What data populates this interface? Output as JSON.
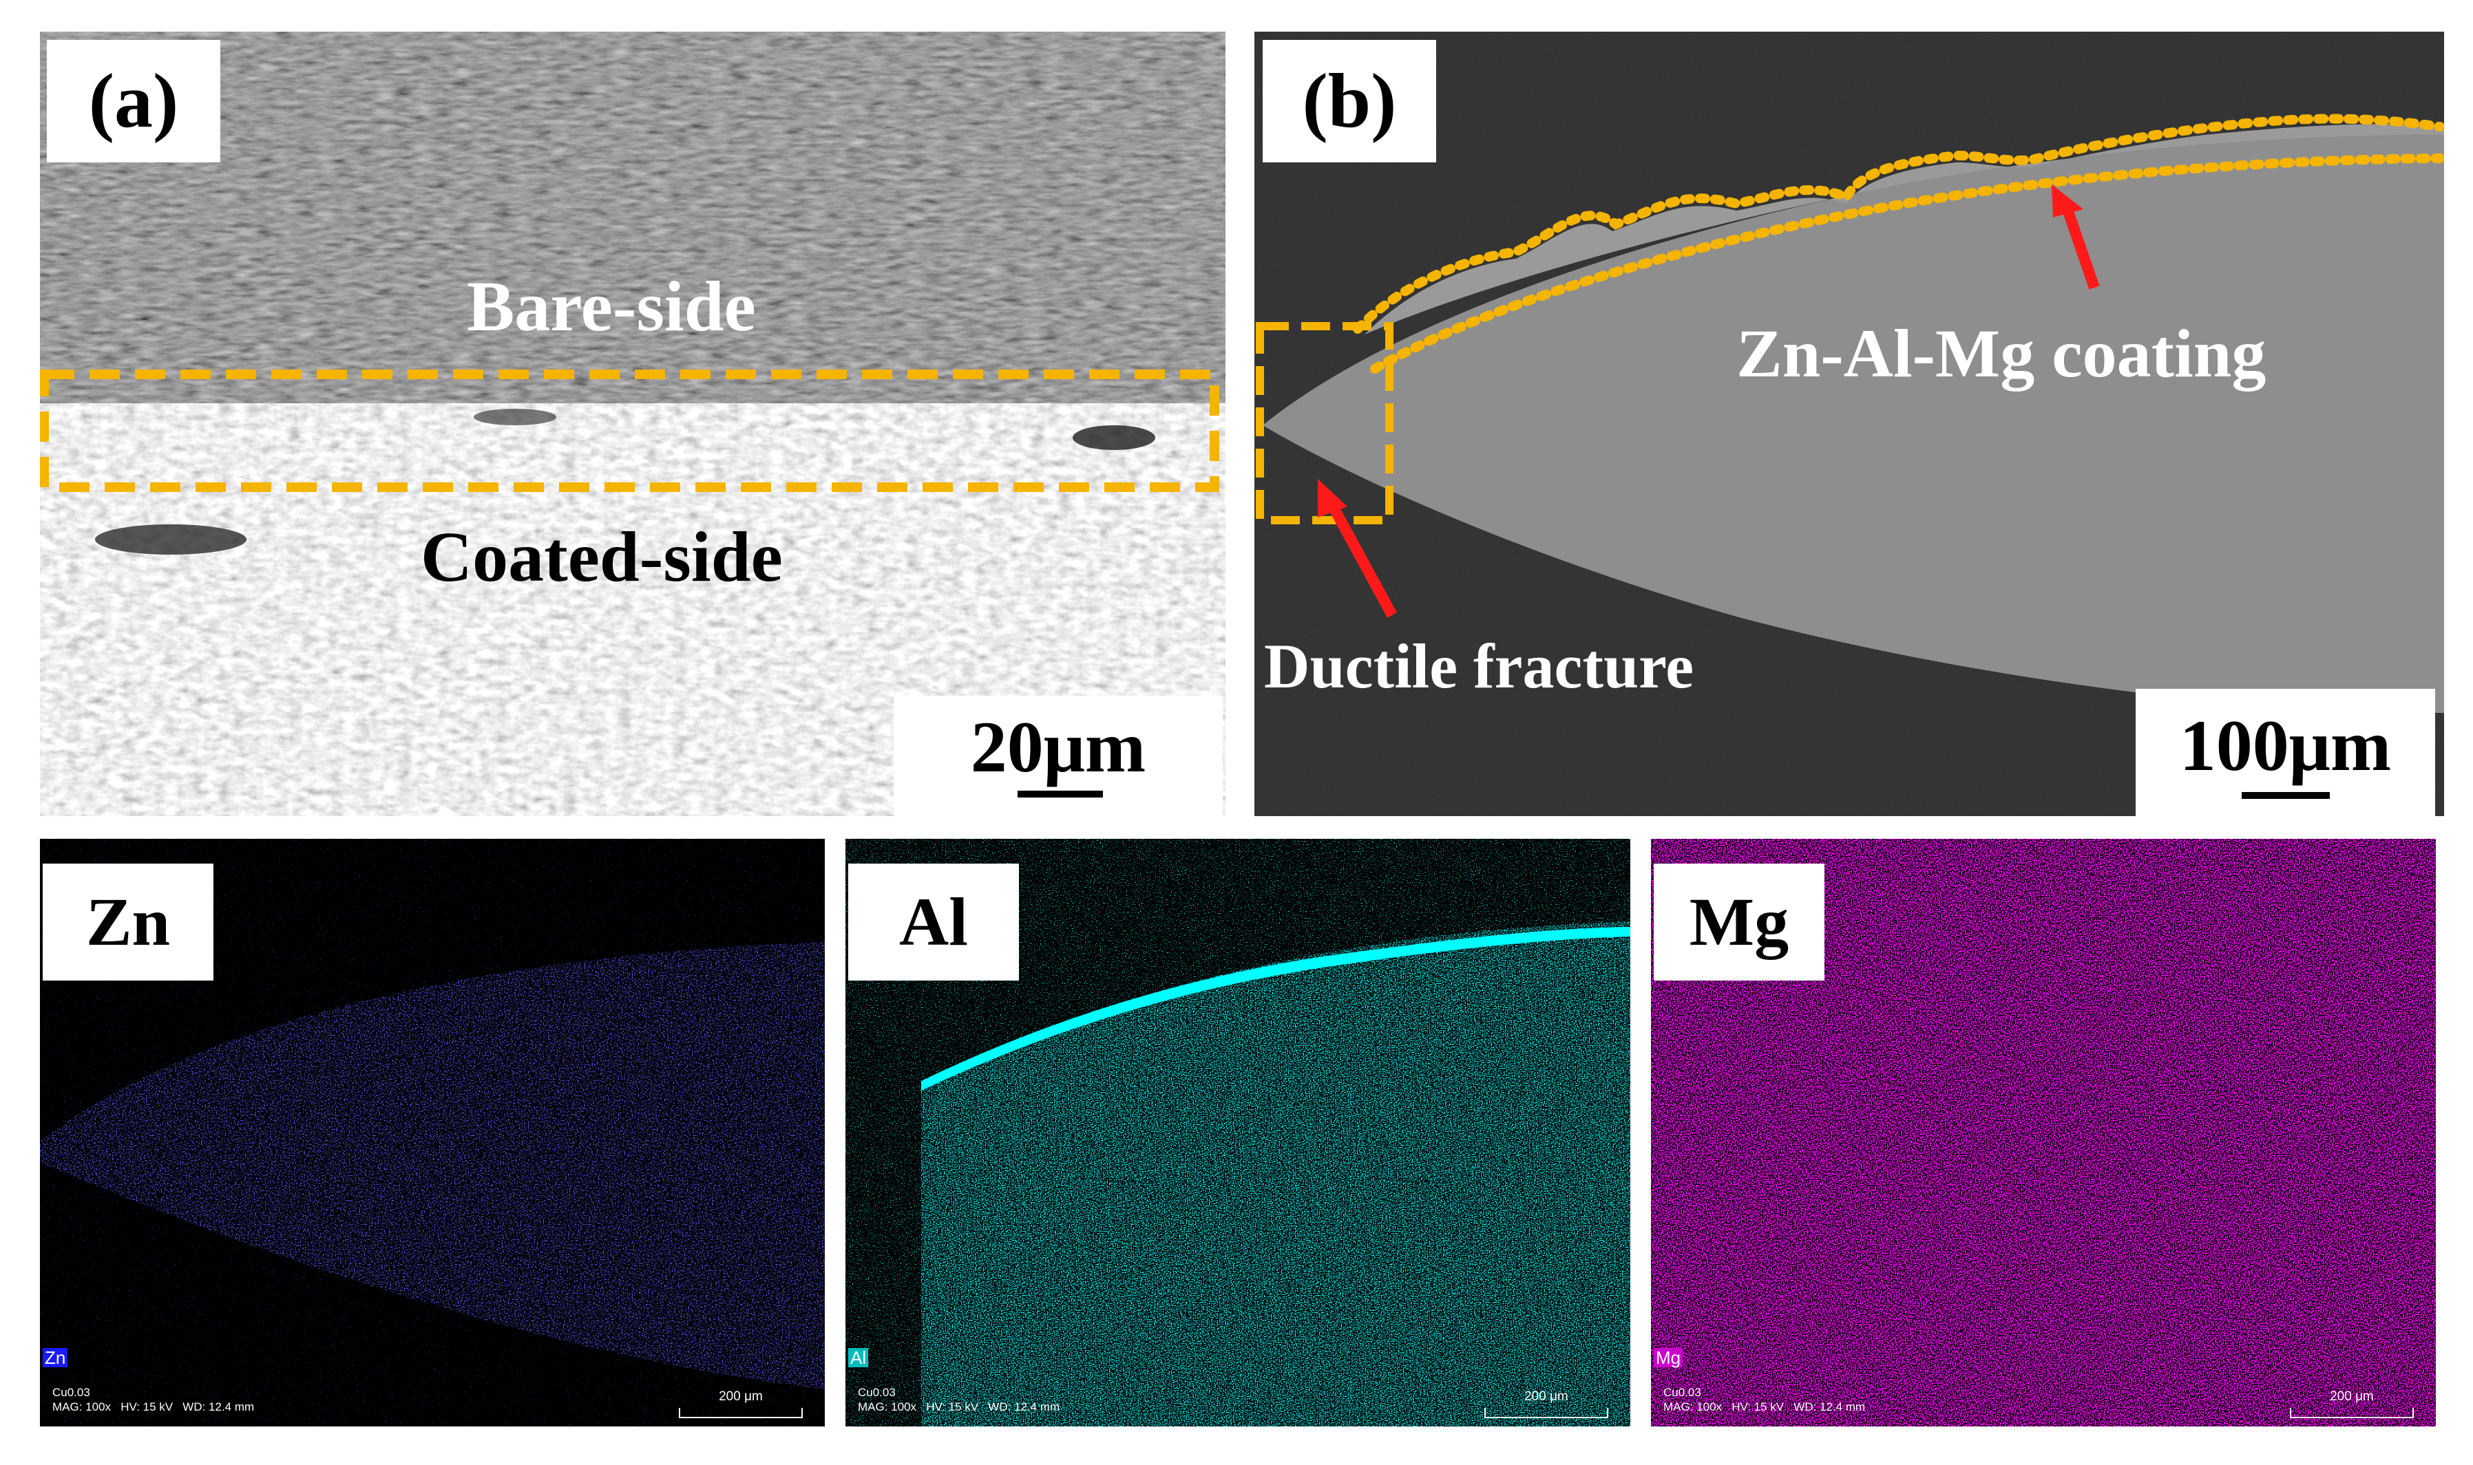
{
  "panel_a": {
    "tag": "(a)",
    "label_top": "Bare-side",
    "label_bottom": "Coated-side",
    "scale": "20μm"
  },
  "panel_b": {
    "tag": "(b)",
    "label_coating": "Zn-Al-Mg coating",
    "label_fracture": "Ductile fracture",
    "scale": "100μm"
  },
  "eds": [
    {
      "tag": "Zn",
      "corner": "Zn",
      "meta": "Cu0.03\nMAG: 100x   HV: 15 kV   WD: 12.4 mm",
      "scale": "200 μm",
      "color": "#1a1aff"
    },
    {
      "tag": "Al",
      "corner": "Al",
      "meta": "Cu0.03\nMAG: 100x   HV: 15 kV   WD: 12.4 mm",
      "scale": "200 μm",
      "color": "#00ffff"
    },
    {
      "tag": "Mg",
      "corner": "Mg",
      "meta": "Cu0.03\nMAG: 100x   HV: 15 kV   WD: 12.4 mm",
      "scale": "200 μm",
      "color": "#ff00ff"
    }
  ],
  "colors": {
    "highlight_dash": "#f5b400",
    "arrow": "#ff1a1a"
  }
}
